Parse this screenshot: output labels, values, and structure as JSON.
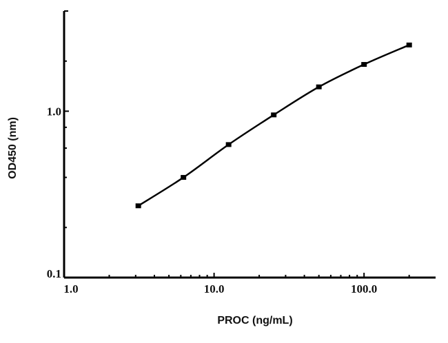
{
  "chart_data": {
    "type": "line",
    "title": "",
    "xlabel": "PROC (ng/mL)",
    "ylabel": "OD450 (nm)",
    "x_scale": "log",
    "y_scale": "log",
    "xlim": [
      1,
      300
    ],
    "ylim": [
      0.1,
      4
    ],
    "x_ticks": [
      1,
      10,
      100
    ],
    "x_tick_labels": [
      "1.0",
      "10.0",
      "100.0"
    ],
    "x_minor_ticks": [
      2,
      3,
      4,
      5,
      6,
      7,
      8,
      9,
      20,
      30,
      40,
      50,
      60,
      70,
      80,
      90,
      200
    ],
    "y_ticks": [
      0.1,
      1
    ],
    "y_tick_labels": [
      "0.1",
      "1.0"
    ],
    "y_minor_ticks": [
      0.2,
      0.4,
      0.6,
      0.8,
      2,
      4
    ],
    "grid": false,
    "line_color": "#000000",
    "series": [
      {
        "x": [
          3.125,
          6.25,
          12.5,
          25,
          50,
          100,
          200
        ],
        "y": [
          0.27,
          0.4,
          0.63,
          0.95,
          1.4,
          1.91,
          2.5
        ]
      }
    ]
  }
}
